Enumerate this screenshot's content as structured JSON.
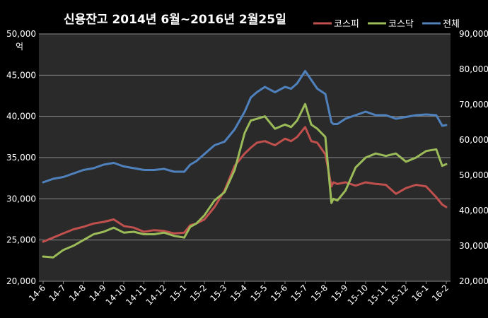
{
  "chart_data": {
    "type": "line",
    "title": "신용잔고 2014년 6월~2016년 2월25일",
    "unit_label": "억",
    "categories": [
      "14-6",
      "14-7",
      "14-8",
      "14-9",
      "14-10",
      "14-11",
      "14-12",
      "15-1",
      "15-2",
      "15-3",
      "15-4",
      "15-5",
      "15-6",
      "15-7",
      "15-8",
      "15-9",
      "15-10",
      "15-11",
      "15-12",
      "16-1",
      "16-2"
    ],
    "y_left": {
      "min": 20000,
      "max": 50000,
      "step": 5000,
      "ticks": [
        "20,000",
        "25,000",
        "30,000",
        "35,000",
        "40,000",
        "45,000",
        "50,000"
      ]
    },
    "y_right": {
      "min": 20000,
      "max": 90000,
      "step": 10000,
      "ticks": [
        "20,000",
        "30,000",
        "40,000",
        "50,000",
        "60,000",
        "70,000",
        "80,000",
        "90,000"
      ]
    },
    "grid": true,
    "legend_position": "top-right",
    "series": [
      {
        "name": "코스피",
        "axis": "left",
        "color": "#c0504d",
        "x": [
          0,
          0.5,
          1,
          1.5,
          2,
          2.5,
          3,
          3.5,
          4,
          4.5,
          5,
          5.5,
          6,
          6.5,
          7,
          7.3,
          7.6,
          8,
          8.5,
          9,
          9.5,
          10,
          10.3,
          10.6,
          11,
          11.5,
          12,
          12.3,
          12.6,
          13,
          13.3,
          13.6,
          14,
          14.3,
          14.4,
          14.6,
          15,
          15.5,
          16,
          16.5,
          17,
          17.5,
          18,
          18.5,
          19,
          19.5,
          19.8,
          20
        ],
        "values": [
          24800,
          25300,
          25800,
          26300,
          26600,
          27000,
          27200,
          27500,
          26700,
          26500,
          26000,
          26200,
          26100,
          25800,
          25900,
          26800,
          27000,
          27500,
          29000,
          31000,
          34000,
          35500,
          36200,
          36800,
          37000,
          36500,
          37300,
          37000,
          37500,
          38700,
          37000,
          36800,
          35400,
          31500,
          32000,
          31800,
          32000,
          31600,
          32000,
          31800,
          31700,
          30600,
          31300,
          31700,
          31500,
          30200,
          29300,
          29000
        ]
      },
      {
        "name": "코스닥",
        "axis": "left",
        "color": "#9bbb59",
        "x": [
          0,
          0.5,
          1,
          1.5,
          2,
          2.5,
          3,
          3.5,
          4,
          4.5,
          5,
          5.5,
          6,
          6.5,
          7,
          7.3,
          7.6,
          8,
          8.5,
          9,
          9.5,
          10,
          10.3,
          10.6,
          11,
          11.5,
          12,
          12.3,
          12.6,
          13,
          13.3,
          13.6,
          14,
          14.3,
          14.4,
          14.6,
          15,
          15.5,
          16,
          16.5,
          17,
          17.5,
          18,
          18.5,
          19,
          19.5,
          19.8,
          20
        ],
        "values": [
          23000,
          22900,
          23800,
          24300,
          25000,
          25700,
          26000,
          26500,
          25900,
          26000,
          25700,
          25700,
          25900,
          25500,
          25300,
          26600,
          27000,
          28000,
          29800,
          30800,
          33500,
          38000,
          39500,
          39700,
          40000,
          38500,
          39000,
          38700,
          39500,
          41500,
          39000,
          38500,
          37500,
          29500,
          30000,
          29800,
          31000,
          33800,
          35000,
          35500,
          35200,
          35500,
          34500,
          35000,
          35800,
          36000,
          34000,
          34200
        ]
      },
      {
        "name": "전체",
        "axis": "right",
        "color": "#4f81bd",
        "x": [
          0,
          0.5,
          1,
          1.5,
          2,
          2.5,
          3,
          3.5,
          4,
          4.5,
          5,
          5.5,
          6,
          6.5,
          7,
          7.3,
          7.6,
          8,
          8.5,
          9,
          9.5,
          10,
          10.3,
          10.6,
          11,
          11.5,
          12,
          12.3,
          12.6,
          13,
          13.3,
          13.6,
          14,
          14.3,
          14.4,
          14.6,
          15,
          15.5,
          16,
          16.5,
          17,
          17.5,
          18,
          18.5,
          19,
          19.5,
          19.8,
          20
        ],
        "values": [
          48000,
          49000,
          49500,
          50500,
          51500,
          52000,
          53000,
          53500,
          52500,
          52000,
          51500,
          51500,
          51800,
          51000,
          51000,
          53000,
          54000,
          56000,
          58500,
          59500,
          63000,
          68000,
          72000,
          73500,
          75000,
          73500,
          75000,
          74500,
          76000,
          79500,
          77000,
          74500,
          73000,
          65000,
          64500,
          64500,
          66000,
          67000,
          68000,
          67000,
          67000,
          66000,
          66500,
          67000,
          67200,
          67000,
          64000,
          64200
        ]
      }
    ]
  }
}
